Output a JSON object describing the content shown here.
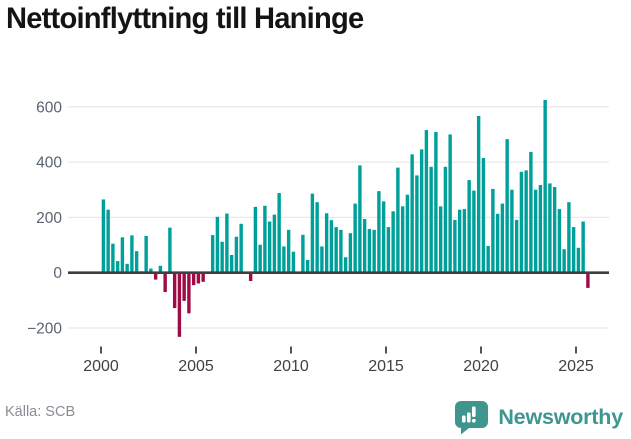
{
  "title": "Nettoinflyttning till Haninge",
  "source": {
    "label": "Källa: SCB"
  },
  "brand": {
    "name": "Newsworthy",
    "color": "#3E968F"
  },
  "colors": {
    "bar_positive": "#00A09A",
    "bar_negative": "#9E0B47",
    "gridline": "#E9E9E9",
    "zero_axis": "#3D4043",
    "y_label": "#5A6370",
    "x_label": "#3E4246",
    "title": "#141414",
    "source_text": "#8C8C96"
  },
  "chart_data": {
    "type": "bar",
    "title": "Nettoinflyttning till Haninge",
    "xlabel": "",
    "ylabel": "",
    "frequency": "quarterly",
    "start_year": 2000,
    "start_quarter": 1,
    "end_year": 2025,
    "end_quarter": 3,
    "ylim": [
      -300,
      700
    ],
    "grid": true,
    "legend": "none",
    "y_ticks": [
      {
        "value": 600,
        "label": "600"
      },
      {
        "value": 400,
        "label": "400"
      },
      {
        "value": 200,
        "label": "200"
      },
      {
        "value": 0,
        "label": "0"
      },
      {
        "value": -200,
        "label": "−200"
      }
    ],
    "x_ticks": [
      {
        "year": 2000,
        "label": "2000"
      },
      {
        "year": 2005,
        "label": "2005"
      },
      {
        "year": 2010,
        "label": "2010"
      },
      {
        "year": 2015,
        "label": "2015"
      },
      {
        "year": 2020,
        "label": "2020"
      },
      {
        "year": 2025,
        "label": "2025"
      }
    ],
    "values": [
      265,
      228,
      105,
      42,
      128,
      32,
      135,
      78,
      5,
      133,
      15,
      -25,
      25,
      -70,
      163,
      -128,
      -232,
      -102,
      -147,
      -45,
      -39,
      -33,
      0,
      136,
      202,
      112,
      214,
      64,
      130,
      177,
      0,
      -30,
      238,
      101,
      242,
      185,
      210,
      288,
      95,
      155,
      76,
      0,
      137,
      46,
      286,
      255,
      95,
      215,
      190,
      165,
      155,
      56,
      143,
      250,
      388,
      194,
      158,
      155,
      295,
      258,
      165,
      222,
      380,
      240,
      282,
      428,
      352,
      446,
      516,
      383,
      509,
      240,
      383,
      500,
      191,
      228,
      230,
      335,
      297,
      567,
      415,
      97,
      303,
      213,
      250,
      483,
      300,
      191,
      365,
      370,
      437,
      300,
      317,
      625,
      323,
      310,
      230,
      85,
      255,
      165,
      90,
      185,
      -55
    ]
  }
}
